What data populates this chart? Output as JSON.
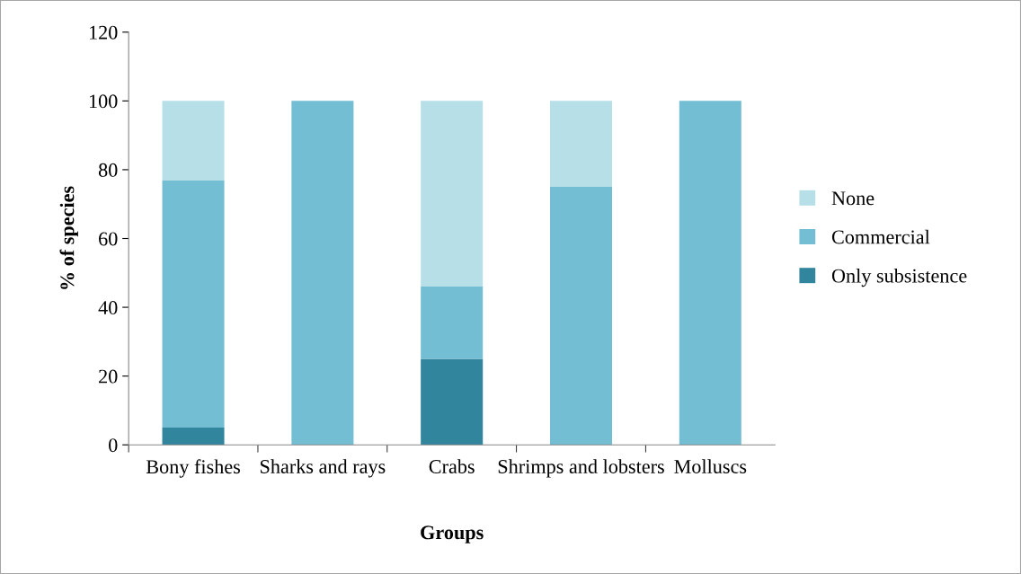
{
  "chart_data": {
    "type": "bar",
    "stacked": true,
    "xlabel": "Groups",
    "ylabel": "% of species",
    "categories": [
      "Bony fishes",
      "Sharks and rays",
      "Crabs",
      "Shrimps and lobsters",
      "Molluscs"
    ],
    "series": [
      {
        "name": "Only subsistence",
        "color": "#31859c",
        "values": [
          5,
          0,
          25,
          0,
          0
        ]
      },
      {
        "name": "Commercial",
        "color": "#74bed4",
        "values": [
          72,
          100,
          21,
          75,
          100
        ]
      },
      {
        "name": "None",
        "color": "#b7dfe8",
        "values": [
          23,
          0,
          54,
          25,
          0
        ]
      }
    ],
    "ylim": [
      0,
      120
    ],
    "yticks": [
      0,
      20,
      40,
      60,
      80,
      100,
      120
    ],
    "grid": false,
    "legend": "right"
  }
}
